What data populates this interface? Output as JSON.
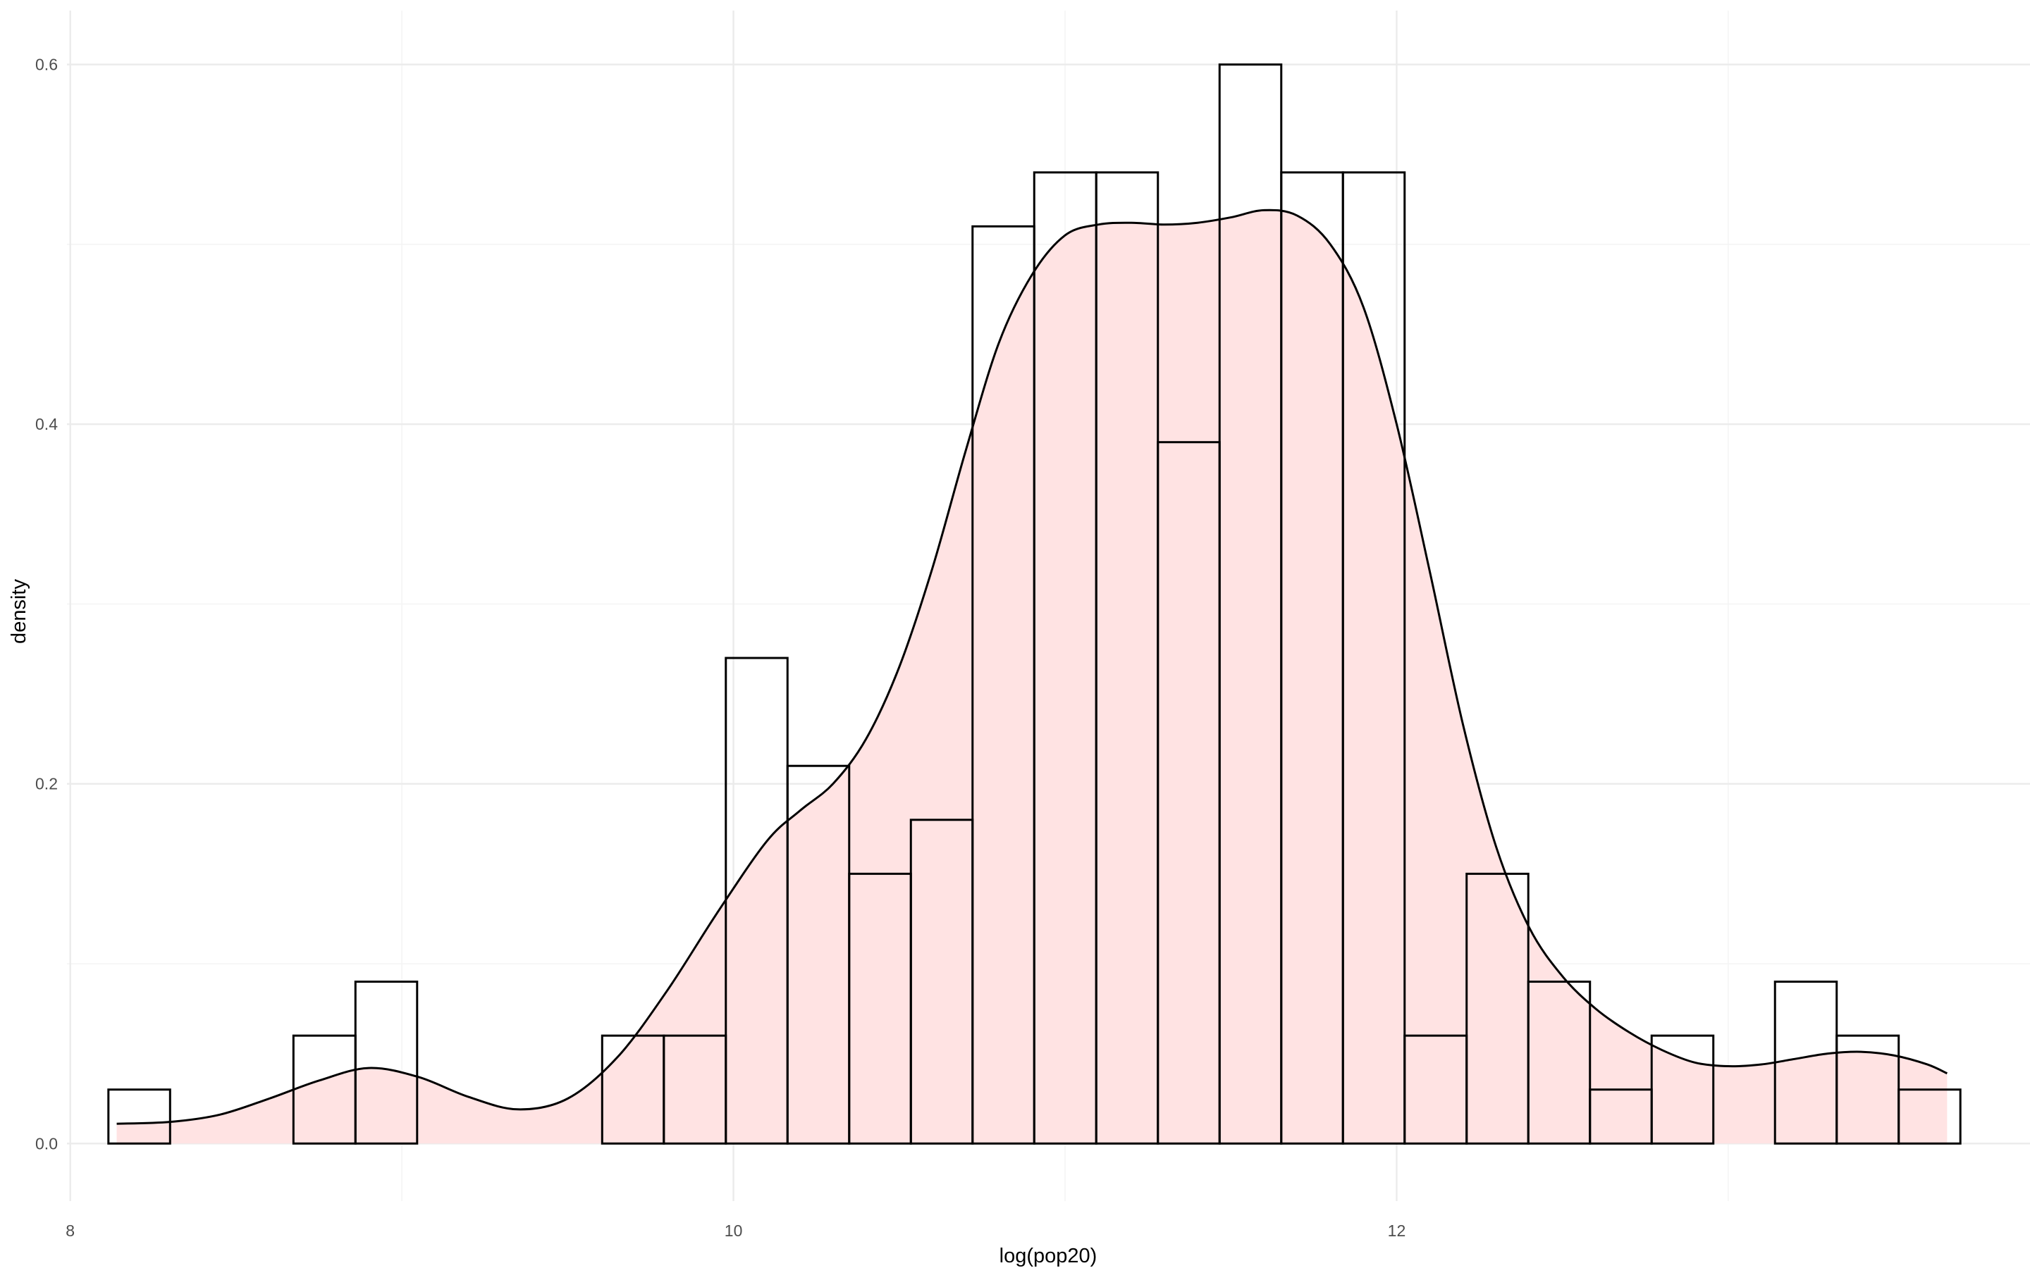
{
  "chart_data": {
    "type": "bar",
    "title": "",
    "xlabel": "log(pop20)",
    "ylabel": "density",
    "xlim": [
      7.99,
      13.91
    ],
    "ylim": [
      -0.032,
      0.63
    ],
    "x_ticks": [
      8,
      10,
      12
    ],
    "x_tick_labels": [
      "8",
      "10",
      "12"
    ],
    "x_minor_ticks": [
      9,
      11,
      13
    ],
    "y_ticks": [
      0.0,
      0.2,
      0.4,
      0.6
    ],
    "y_tick_labels": [
      "0.0",
      "0.2",
      "0.4",
      "0.6"
    ],
    "y_minor_ticks": [
      0.1,
      0.3,
      0.5
    ],
    "grid": true,
    "legend": "none",
    "histogram": {
      "bin_edges": [
        8.115,
        8.301,
        8.487,
        8.673,
        8.86,
        9.046,
        9.232,
        9.418,
        9.604,
        9.79,
        9.977,
        10.163,
        10.349,
        10.535,
        10.721,
        10.907,
        11.094,
        11.28,
        11.466,
        11.652,
        11.838,
        12.024,
        12.211,
        12.397,
        12.583,
        12.769,
        12.955,
        13.141,
        13.327,
        13.514,
        13.7
      ],
      "density": [
        0.03,
        0.0,
        0.0,
        0.06,
        0.09,
        0.0,
        0.0,
        0.0,
        0.06,
        0.06,
        0.27,
        0.21,
        0.15,
        0.18,
        0.51,
        0.54,
        0.54,
        0.39,
        0.6,
        0.54,
        0.54,
        0.06,
        0.15,
        0.09,
        0.03,
        0.06,
        0.0,
        0.09,
        0.06,
        0.03
      ],
      "bar_stroke": "#000000",
      "bar_fill": "none"
    },
    "density_curve": {
      "x": [
        8.14,
        8.3,
        8.45,
        8.6,
        8.75,
        8.9,
        9.05,
        9.2,
        9.35,
        9.5,
        9.65,
        9.8,
        9.95,
        10.1,
        10.2,
        10.3,
        10.4,
        10.5,
        10.6,
        10.7,
        10.8,
        10.9,
        11.0,
        11.1,
        11.2,
        11.3,
        11.4,
        11.5,
        11.6,
        11.7,
        11.8,
        11.9,
        12.0,
        12.1,
        12.2,
        12.3,
        12.4,
        12.5,
        12.6,
        12.7,
        12.8,
        12.9,
        13.0,
        13.1,
        13.2,
        13.3,
        13.4,
        13.5,
        13.6,
        13.66
      ],
      "y": [
        0.011,
        0.012,
        0.016,
        0.025,
        0.035,
        0.042,
        0.037,
        0.026,
        0.019,
        0.025,
        0.048,
        0.085,
        0.128,
        0.168,
        0.185,
        0.2,
        0.225,
        0.265,
        0.32,
        0.385,
        0.445,
        0.483,
        0.505,
        0.511,
        0.512,
        0.511,
        0.512,
        0.515,
        0.519,
        0.516,
        0.5,
        0.465,
        0.4,
        0.318,
        0.233,
        0.165,
        0.12,
        0.093,
        0.075,
        0.062,
        0.052,
        0.045,
        0.043,
        0.044,
        0.047,
        0.05,
        0.051,
        0.049,
        0.044,
        0.039
      ],
      "line_color": "#000000",
      "fill_color": "#ffe3e3"
    },
    "colors": {
      "background": "#ffffff",
      "grid_major": "#ebebeb",
      "grid_minor": "#f3f3f3",
      "tick_text": "#4d4d4d",
      "axis_title": "#000000"
    }
  }
}
